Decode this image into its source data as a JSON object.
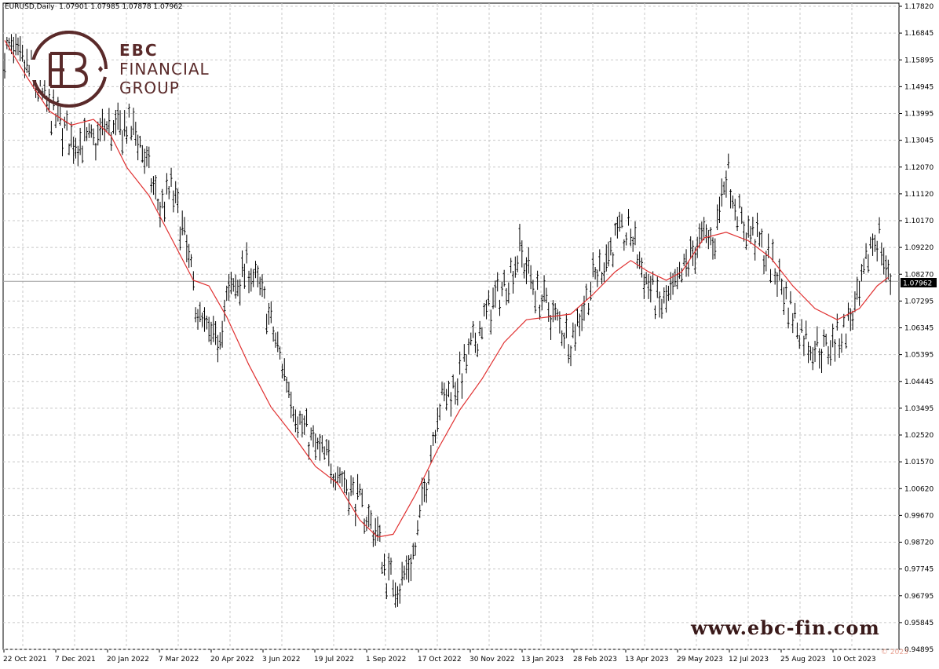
{
  "info_bar": {
    "symbol": "EURUSD,Daily",
    "open": "1.07901",
    "high": "1.07985",
    "low": "1.07878",
    "close": "1.07962"
  },
  "logo": {
    "line1": "EBC",
    "line2": "FINANCIAL",
    "line3": "GROUP"
  },
  "website": "www.ebc-fin.com",
  "watermark": "© 2023",
  "current_price": "1.07962",
  "colors": {
    "bars": "#000000",
    "ma_line": "#e03030",
    "grid": "#c8c8c8",
    "brand": "#5a2a2a"
  },
  "chart_data": {
    "type": "line",
    "subtype": "ohlc-bars-with-moving-average",
    "grid": true,
    "ylim": [
      0.9492,
      1.1782
    ],
    "y_ticks": [
      "1.17820",
      "1.16845",
      "1.15895",
      "1.14945",
      "1.13995",
      "1.13045",
      "1.12070",
      "1.11120",
      "1.10170",
      "1.09220",
      "1.08270",
      "1.07295",
      "1.06345",
      "1.05395",
      "1.04445",
      "1.03495",
      "1.02520",
      "1.01570",
      "1.00620",
      "0.99670",
      "0.98720",
      "0.97745",
      "0.96795",
      "0.95845",
      "0.94895"
    ],
    "x_ticks": [
      "22 Oct 2021",
      "7 Dec 2021",
      "20 Jan 2022",
      "7 Mar 2022",
      "20 Apr 2022",
      "3 Jun 2022",
      "19 Jul 2022",
      "1 Sep 2022",
      "17 Oct 2022",
      "30 Nov 2022",
      "13 Jan 2023",
      "28 Feb 2023",
      "13 Apr 2023",
      "29 May 2023",
      "12 Jul 2023",
      "25 Aug 2023",
      "10 Oct 2023"
    ],
    "series": [
      {
        "role": "price",
        "points": [
          [
            0,
            1.162
          ],
          [
            10,
            1.155
          ],
          [
            20,
            1.14
          ],
          [
            30,
            1.13
          ],
          [
            40,
            1.128
          ],
          [
            45,
            1.134
          ],
          [
            50,
            1.132
          ],
          [
            55,
            1.135
          ],
          [
            60,
            1.131
          ],
          [
            70,
            1.105
          ],
          [
            75,
            1.112
          ],
          [
            80,
            1.098
          ],
          [
            88,
            1.065
          ],
          [
            95,
            1.056
          ],
          [
            100,
            1.073
          ],
          [
            110,
            1.085
          ],
          [
            118,
            1.07
          ],
          [
            125,
            1.05
          ],
          [
            133,
            1.03
          ],
          [
            140,
            1.02
          ],
          [
            150,
            1.013
          ],
          [
            160,
            1.0
          ],
          [
            168,
            0.99
          ],
          [
            172,
            0.975
          ],
          [
            178,
            0.972
          ],
          [
            185,
            0.985
          ],
          [
            195,
            1.035
          ],
          [
            205,
            1.045
          ],
          [
            215,
            1.065
          ],
          [
            225,
            1.078
          ],
          [
            232,
            1.09
          ],
          [
            240,
            1.075
          ],
          [
            248,
            1.066
          ],
          [
            255,
            1.059
          ],
          [
            265,
            1.08
          ],
          [
            275,
            1.094
          ],
          [
            282,
            1.097
          ],
          [
            288,
            1.082
          ],
          [
            295,
            1.07
          ],
          [
            302,
            1.076
          ],
          [
            312,
            1.093
          ],
          [
            320,
            1.095
          ],
          [
            325,
            1.12
          ],
          [
            332,
            1.1
          ],
          [
            340,
            1.093
          ],
          [
            348,
            1.082
          ],
          [
            355,
            1.068
          ],
          [
            362,
            1.058
          ],
          [
            370,
            1.055
          ],
          [
            378,
            1.062
          ],
          [
            385,
            1.073
          ],
          [
            390,
            1.093
          ],
          [
            394,
            1.096
          ],
          [
            398,
            1.08
          ]
        ]
      },
      {
        "role": "moving-average",
        "points": [
          [
            0,
            1.165
          ],
          [
            10,
            1.152
          ],
          [
            20,
            1.14
          ],
          [
            30,
            1.135
          ],
          [
            40,
            1.137
          ],
          [
            48,
            1.131
          ],
          [
            55,
            1.12
          ],
          [
            65,
            1.11
          ],
          [
            75,
            1.095
          ],
          [
            85,
            1.08
          ],
          [
            92,
            1.078
          ],
          [
            100,
            1.067
          ],
          [
            110,
            1.05
          ],
          [
            120,
            1.035
          ],
          [
            130,
            1.025
          ],
          [
            140,
            1.014
          ],
          [
            150,
            1.008
          ],
          [
            160,
            0.995
          ],
          [
            168,
            0.989
          ],
          [
            175,
            0.99
          ],
          [
            185,
            1.004
          ],
          [
            195,
            1.02
          ],
          [
            205,
            1.034
          ],
          [
            215,
            1.045
          ],
          [
            225,
            1.058
          ],
          [
            235,
            1.066
          ],
          [
            245,
            1.067
          ],
          [
            255,
            1.068
          ],
          [
            265,
            1.075
          ],
          [
            275,
            1.083
          ],
          [
            282,
            1.087
          ],
          [
            290,
            1.083
          ],
          [
            298,
            1.08
          ],
          [
            305,
            1.083
          ],
          [
            315,
            1.095
          ],
          [
            325,
            1.097
          ],
          [
            335,
            1.094
          ],
          [
            345,
            1.088
          ],
          [
            355,
            1.078
          ],
          [
            365,
            1.07
          ],
          [
            375,
            1.066
          ],
          [
            385,
            1.07
          ],
          [
            393,
            1.078
          ],
          [
            398,
            1.081
          ]
        ]
      }
    ]
  }
}
